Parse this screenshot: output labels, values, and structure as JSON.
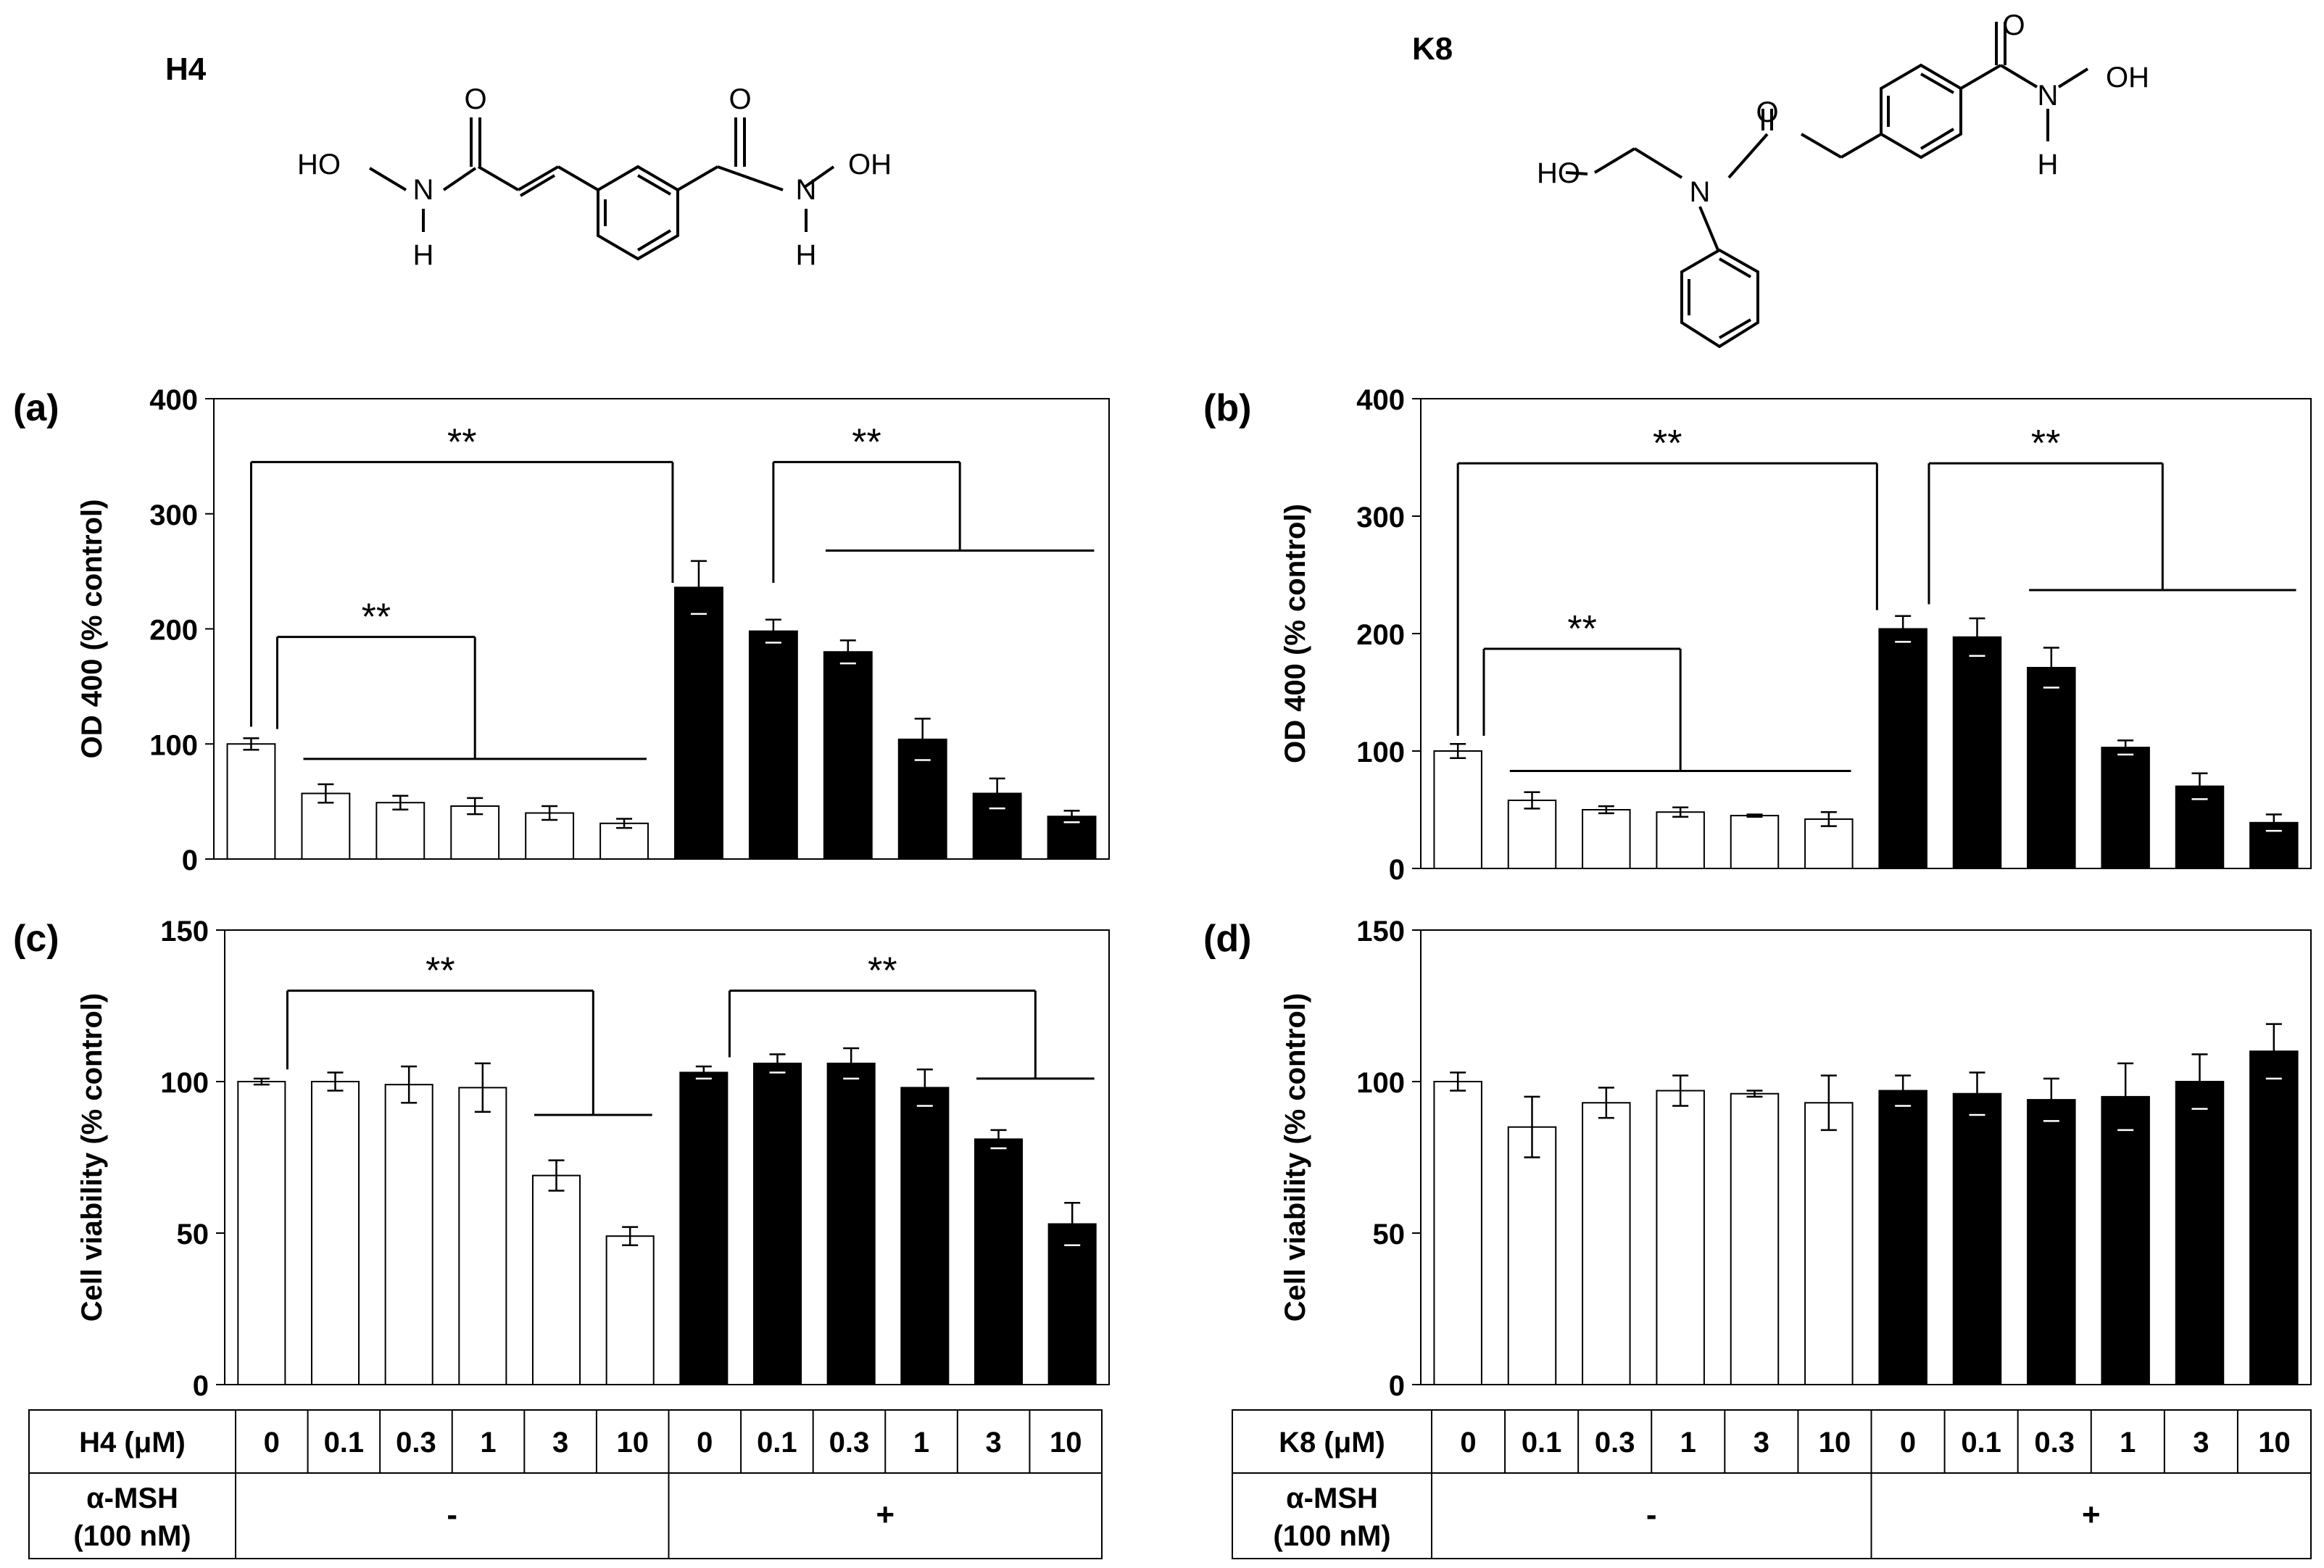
{
  "compounds": [
    {
      "name": "H4"
    },
    {
      "name": "K8"
    }
  ],
  "chart_data": [
    {
      "panel": "(a)",
      "type": "bar",
      "ylabel": "OD 400 (% control)",
      "ylim": [
        0,
        400
      ],
      "yticks": [
        0,
        100,
        200,
        300,
        400
      ],
      "categories": [
        "0",
        "0.1",
        "0.3",
        "1",
        "3",
        "10",
        "0",
        "0.1",
        "0.3",
        "1",
        "3",
        "10"
      ],
      "values": [
        100,
        57,
        49,
        46,
        40,
        31,
        236,
        198,
        180,
        104,
        57,
        37
      ],
      "errors": [
        5,
        8,
        6,
        7,
        6,
        4,
        23,
        10,
        10,
        18,
        13,
        5
      ],
      "fill": [
        "#ffffff",
        "#ffffff",
        "#ffffff",
        "#ffffff",
        "#ffffff",
        "#ffffff",
        "#000000",
        "#000000",
        "#000000",
        "#000000",
        "#000000",
        "#000000"
      ],
      "annotations": [
        {
          "label": "**",
          "from": 0,
          "to": 6,
          "bracket_y": 345,
          "tip_y": 115,
          "tip_y2": 240
        },
        {
          "label": "**",
          "from": 7,
          "to_group": [
            8,
            11
          ],
          "bracket_y": 345,
          "tip_y": 240,
          "group_y": 268
        },
        {
          "label": "**",
          "from": 0.35,
          "to_group": [
            1,
            5
          ],
          "bracket_y": 193,
          "tip_y": 113,
          "group_y": 87
        }
      ]
    },
    {
      "panel": "(b)",
      "type": "bar",
      "ylabel": "OD 400 (% control)",
      "ylim": [
        0,
        400
      ],
      "yticks": [
        0,
        100,
        200,
        300,
        400
      ],
      "categories": [
        "0",
        "0.1",
        "0.3",
        "1",
        "3",
        "10",
        "0",
        "0.1",
        "0.3",
        "1",
        "3",
        "10"
      ],
      "values": [
        100,
        58,
        50,
        48,
        45,
        42,
        204,
        197,
        171,
        103,
        70,
        39
      ],
      "errors": [
        6,
        7,
        3,
        4,
        1,
        6,
        11,
        16,
        17,
        6,
        11,
        7
      ],
      "fill": [
        "#ffffff",
        "#ffffff",
        "#ffffff",
        "#ffffff",
        "#ffffff",
        "#ffffff",
        "#000000",
        "#000000",
        "#000000",
        "#000000",
        "#000000",
        "#000000"
      ],
      "annotations": [
        {
          "label": "**",
          "from": 0,
          "to": 6,
          "bracket_y": 345,
          "tip_y": 113,
          "tip_y2": 220
        },
        {
          "label": "**",
          "from": 6.35,
          "to_group": [
            8,
            11
          ],
          "bracket_y": 345,
          "tip_y": 225,
          "group_y": 237
        },
        {
          "label": "**",
          "from": 0.35,
          "to_group": [
            1,
            5
          ],
          "bracket_y": 187,
          "tip_y": 113,
          "group_y": 83
        }
      ]
    },
    {
      "panel": "(c)",
      "type": "bar",
      "ylabel": "Cell viability (% control)",
      "ylim": [
        0,
        150
      ],
      "yticks": [
        0,
        50,
        100,
        150
      ],
      "categories": [
        "0",
        "0.1",
        "0.3",
        "1",
        "3",
        "10",
        "0",
        "0.1",
        "0.3",
        "1",
        "3",
        "10"
      ],
      "values": [
        100,
        100,
        99,
        98,
        69,
        49,
        103,
        106,
        106,
        98,
        81,
        53
      ],
      "errors": [
        1,
        3,
        6,
        8,
        5,
        3,
        2,
        3,
        5,
        6,
        3,
        7
      ],
      "fill": [
        "#ffffff",
        "#ffffff",
        "#ffffff",
        "#ffffff",
        "#ffffff",
        "#ffffff",
        "#000000",
        "#000000",
        "#000000",
        "#000000",
        "#000000",
        "#000000"
      ],
      "annotations": [
        {
          "label": "**",
          "from": 0.35,
          "to_group": [
            4,
            5
          ],
          "bracket_y": 130,
          "tip_y": 104,
          "group_y": 89
        },
        {
          "label": "**",
          "from": 6.35,
          "to_group": [
            10,
            11
          ],
          "bracket_y": 130,
          "tip_y": 108,
          "group_y": 101
        }
      ]
    },
    {
      "panel": "(d)",
      "type": "bar",
      "ylabel": "Cell viability (% control)",
      "ylim": [
        0,
        150
      ],
      "yticks": [
        0,
        50,
        100,
        150
      ],
      "categories": [
        "0",
        "0.1",
        "0.3",
        "1",
        "3",
        "10",
        "0",
        "0.1",
        "0.3",
        "1",
        "3",
        "10"
      ],
      "values": [
        100,
        85,
        93,
        97,
        96,
        93,
        97,
        96,
        94,
        95,
        100,
        110
      ],
      "errors": [
        3,
        10,
        5,
        5,
        1,
        9,
        5,
        7,
        7,
        11,
        9,
        9
      ],
      "fill": [
        "#ffffff",
        "#ffffff",
        "#ffffff",
        "#ffffff",
        "#ffffff",
        "#ffffff",
        "#000000",
        "#000000",
        "#000000",
        "#000000",
        "#000000",
        "#000000"
      ],
      "annotations": []
    }
  ],
  "tables": [
    {
      "row1_label": "H4 (μM)",
      "row2_label_line1": "α-MSH",
      "row2_label_line2": "(100 nM)",
      "doses": [
        "0",
        "0.1",
        "0.3",
        "1",
        "3",
        "10",
        "0",
        "0.1",
        "0.3",
        "1",
        "3",
        "10"
      ],
      "minus": "-",
      "plus": "+"
    },
    {
      "row1_label": "K8 (μM)",
      "row2_label_line1": "α-MSH",
      "row2_label_line2": "(100 nM)",
      "doses": [
        "0",
        "0.1",
        "0.3",
        "1",
        "3",
        "10",
        "0",
        "0.1",
        "0.3",
        "1",
        "3",
        "10"
      ],
      "minus": "-",
      "plus": "+"
    }
  ]
}
